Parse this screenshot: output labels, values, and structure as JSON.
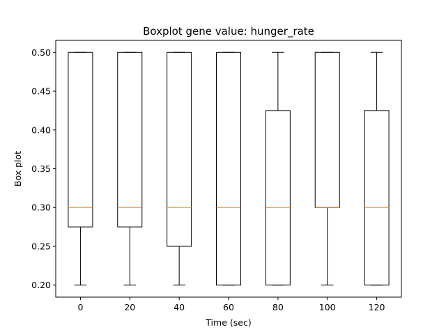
{
  "chart_data": {
    "type": "box",
    "title": "Boxplot gene value: hunger_rate",
    "xlabel": "Time (sec)",
    "ylabel": "Box plot",
    "categories": [
      "0",
      "20",
      "40",
      "60",
      "80",
      "100",
      "120"
    ],
    "boxes": [
      {
        "x": 0,
        "whisker_low": 0.2,
        "q1": 0.275,
        "median": 0.3,
        "q3": 0.5,
        "whisker_high": 0.5
      },
      {
        "x": 20,
        "whisker_low": 0.2,
        "q1": 0.275,
        "median": 0.3,
        "q3": 0.5,
        "whisker_high": 0.5
      },
      {
        "x": 40,
        "whisker_low": 0.2,
        "q1": 0.25,
        "median": 0.3,
        "q3": 0.5,
        "whisker_high": 0.5
      },
      {
        "x": 60,
        "whisker_low": 0.2,
        "q1": 0.2,
        "median": 0.3,
        "q3": 0.5,
        "whisker_high": 0.5
      },
      {
        "x": 80,
        "whisker_low": 0.2,
        "q1": 0.2,
        "median": 0.3,
        "q3": 0.425,
        "whisker_high": 0.5
      },
      {
        "x": 100,
        "whisker_low": 0.2,
        "q1": 0.3,
        "median": 0.3,
        "q3": 0.5,
        "whisker_high": 0.5
      },
      {
        "x": 120,
        "whisker_low": 0.2,
        "q1": 0.2,
        "median": 0.3,
        "q3": 0.425,
        "whisker_high": 0.5
      }
    ],
    "yticks": [
      "0.20",
      "0.25",
      "0.30",
      "0.35",
      "0.40",
      "0.45",
      "0.50"
    ],
    "ylim": [
      0.1845,
      0.5155
    ],
    "grid": false,
    "colors": {
      "box": "#000000",
      "median": "#ff7f0e"
    }
  }
}
